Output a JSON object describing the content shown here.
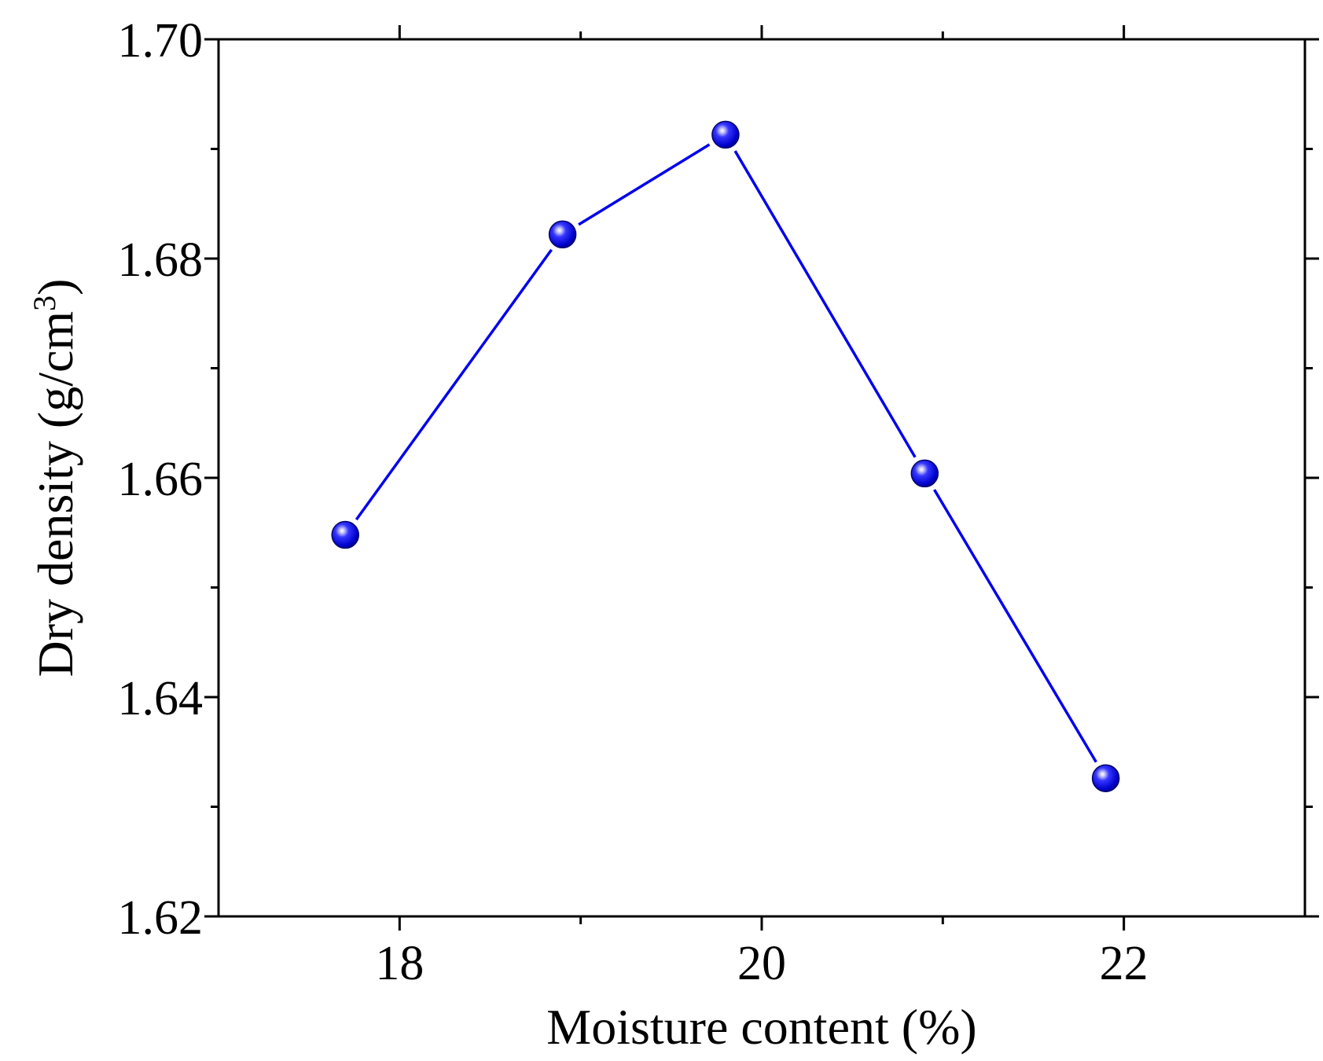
{
  "chart_data": {
    "type": "line",
    "title": "",
    "xlabel": "Moisture content (%)",
    "ylabel": "Dry density (g/cm",
    "ylabel_superscript": "3",
    "ylabel_suffix": ")",
    "xlim": [
      17,
      23
    ],
    "ylim": [
      1.62,
      1.7
    ],
    "x_ticks": [
      18,
      20,
      22
    ],
    "x_tick_labels": [
      "18",
      "20",
      "22"
    ],
    "x_minor_ticks": [
      19,
      21
    ],
    "y_ticks": [
      1.62,
      1.64,
      1.66,
      1.68,
      1.7
    ],
    "y_tick_labels": [
      "1.62",
      "1.64",
      "1.66",
      "1.68",
      "1.70"
    ],
    "y_minor_ticks": [
      1.63,
      1.65,
      1.67,
      1.69
    ],
    "grid": false,
    "series": [
      {
        "x": [
          17.7,
          18.9,
          19.8,
          20.9,
          21.9
        ],
        "y": [
          1.6548,
          1.6822,
          1.6913,
          1.6604,
          1.6326
        ],
        "color": "#0000ee",
        "marker": "sphere"
      }
    ]
  }
}
